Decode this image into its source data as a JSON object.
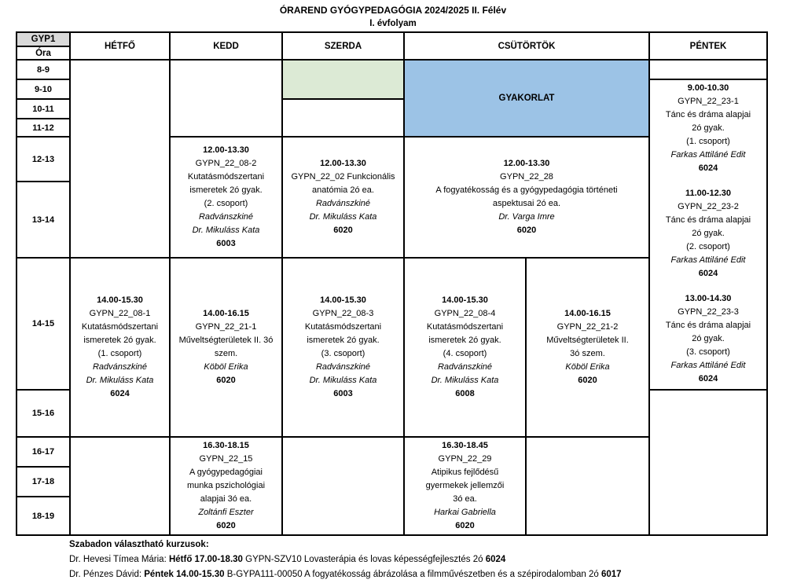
{
  "title": {
    "line1": "ÓRAREND GYÓGYPEDAGÓGIA 2024/2025 II. Félév",
    "line2": "I. évfolyam"
  },
  "header": {
    "group": "GYP1",
    "hour": "Óra",
    "monday": "HÉTFŐ",
    "tuesday": "KEDD",
    "wednesday": "SZERDA",
    "thursday": "CSÜTÖRTÖK",
    "friday": "PÉNTEK"
  },
  "time_rows": [
    "8-9",
    "9-10",
    "10-11",
    "11-12",
    "12-13",
    "13-14",
    "14-15",
    "15-16",
    "16-17",
    "17-18",
    "18-19"
  ],
  "colors": {
    "practice_blue": "#9cc3e6",
    "free_slot_green": "#dcead5",
    "header_gray": "#d9d9d9"
  },
  "gyakorlat": {
    "label": "GYAKORLAT"
  },
  "courses": {
    "tuesday_1200": {
      "lines": [
        {
          "t": "12.00-13.30",
          "s": "b"
        },
        {
          "t": "GYPN_22_08-2",
          "s": "n"
        },
        {
          "t": "Kutatásmódszertani",
          "s": "n"
        },
        {
          "t": "ismeretek 2ó gyak.",
          "s": "n"
        },
        {
          "t": "(2. csoport)",
          "s": "n"
        },
        {
          "t": "Radvánszkiné",
          "s": "i"
        },
        {
          "t": "Dr. Mikuláss Kata",
          "s": "i"
        },
        {
          "t": "6003",
          "s": "b"
        }
      ]
    },
    "wednesday_1200": {
      "lines": [
        {
          "t": "12.00-13.30",
          "s": "b"
        },
        {
          "t": "GYPN_22_02 Funkcionális",
          "s": "n"
        },
        {
          "t": "anatómia 2ó ea.",
          "s": "n"
        },
        {
          "t": "Radvánszkiné",
          "s": "i"
        },
        {
          "t": "Dr. Mikuláss Kata",
          "s": "i"
        },
        {
          "t": "6020",
          "s": "b"
        }
      ]
    },
    "thursday_1200": {
      "lines": [
        {
          "t": "12.00-13.30",
          "s": "b"
        },
        {
          "t": "GYPN_22_28",
          "s": "n"
        },
        {
          "t": "A fogyatékosság és a gyógypedagógia történeti",
          "s": "n"
        },
        {
          "t": "aspektusai 2ó ea.",
          "s": "n"
        },
        {
          "t": "Dr. Varga Imre",
          "s": "i"
        },
        {
          "t": "6020",
          "s": "b"
        }
      ]
    },
    "monday_1400": {
      "lines": [
        {
          "t": "14.00-15.30",
          "s": "b"
        },
        {
          "t": "GYPN_22_08-1",
          "s": "n"
        },
        {
          "t": "Kutatásmódszertani",
          "s": "n"
        },
        {
          "t": "ismeretek 2ó gyak.",
          "s": "n"
        },
        {
          "t": "(1. csoport)",
          "s": "n"
        },
        {
          "t": "Radvánszkiné",
          "s": "i"
        },
        {
          "t": "Dr. Mikuláss Kata",
          "s": "i"
        },
        {
          "t": "6024",
          "s": "b"
        }
      ]
    },
    "tuesday_1400": {
      "lines": [
        {
          "t": "14.00-16.15",
          "s": "b"
        },
        {
          "t": "GYPN_22_21-1",
          "s": "n"
        },
        {
          "t": "Műveltségterületek II. 3ó",
          "s": "n"
        },
        {
          "t": "szem.",
          "s": "n"
        },
        {
          "t": "Köböl Erika",
          "s": "i"
        },
        {
          "t": "6020",
          "s": "b"
        }
      ]
    },
    "wednesday_1400": {
      "lines": [
        {
          "t": "14.00-15.30",
          "s": "b"
        },
        {
          "t": "GYPN_22_08-3",
          "s": "n"
        },
        {
          "t": "Kutatásmódszertani",
          "s": "n"
        },
        {
          "t": "ismeretek 2ó gyak.",
          "s": "n"
        },
        {
          "t": "(3. csoport)",
          "s": "n"
        },
        {
          "t": "Radvánszkiné",
          "s": "i"
        },
        {
          "t": "Dr. Mikuláss Kata",
          "s": "i"
        },
        {
          "t": "6003",
          "s": "b"
        }
      ]
    },
    "thursday_1400_a": {
      "lines": [
        {
          "t": "14.00-15.30",
          "s": "b"
        },
        {
          "t": "GYPN_22_08-4",
          "s": "n"
        },
        {
          "t": "Kutatásmódszertani",
          "s": "n"
        },
        {
          "t": "ismeretek 2ó gyak.",
          "s": "n"
        },
        {
          "t": "(4. csoport)",
          "s": "n"
        },
        {
          "t": "Radvánszkiné",
          "s": "i"
        },
        {
          "t": "Dr. Mikuláss Kata",
          "s": "i"
        },
        {
          "t": "6008",
          "s": "b"
        }
      ]
    },
    "thursday_1400_b": {
      "lines": [
        {
          "t": "14.00-16.15",
          "s": "b"
        },
        {
          "t": "GYPN_22_21-2",
          "s": "n"
        },
        {
          "t": "Műveltségterületek II.",
          "s": "n"
        },
        {
          "t": "3ó szem.",
          "s": "n"
        },
        {
          "t": "Köböl Erika",
          "s": "i"
        },
        {
          "t": "6020",
          "s": "b"
        }
      ]
    },
    "tuesday_1630": {
      "lines": [
        {
          "t": "16.30-18.15",
          "s": "b"
        },
        {
          "t": "GYPN_22_15",
          "s": "n"
        },
        {
          "t": "A gyógypedagógiai",
          "s": "n"
        },
        {
          "t": "munka pszichológiai",
          "s": "n"
        },
        {
          "t": "alapjai 3ó ea.",
          "s": "n"
        },
        {
          "t": "Zoltánfi Eszter",
          "s": "i"
        },
        {
          "t": "6020",
          "s": "b"
        }
      ]
    },
    "thursday_1630": {
      "lines": [
        {
          "t": "16.30-18.45",
          "s": "b"
        },
        {
          "t": "GYPN_22_29",
          "s": "n"
        },
        {
          "t": "Atipikus fejlődésű",
          "s": "n"
        },
        {
          "t": "gyermekek jellemzői",
          "s": "n"
        },
        {
          "t": "3ó ea.",
          "s": "n"
        },
        {
          "t": "Harkai Gabriella",
          "s": "i"
        },
        {
          "t": "6020",
          "s": "b"
        }
      ]
    },
    "friday_0900": {
      "lines": [
        {
          "t": "9.00-10.30",
          "s": "b"
        },
        {
          "t": "GYPN_22_23-1",
          "s": "n"
        },
        {
          "t": "Tánc és dráma alapjai",
          "s": "n"
        },
        {
          "t": "2ó gyak.",
          "s": "n"
        },
        {
          "t": "(1. csoport)",
          "s": "n"
        },
        {
          "t": "Farkas Attiláné Edit",
          "s": "i"
        },
        {
          "t": "6024",
          "s": "b"
        }
      ]
    },
    "friday_1100": {
      "lines": [
        {
          "t": "11.00-12.30",
          "s": "b"
        },
        {
          "t": "GYPN_22_23-2",
          "s": "n"
        },
        {
          "t": "Tánc és dráma alapjai",
          "s": "n"
        },
        {
          "t": "2ó gyak.",
          "s": "n"
        },
        {
          "t": "(2. csoport)",
          "s": "n"
        },
        {
          "t": "Farkas Attiláné Edit",
          "s": "i"
        },
        {
          "t": "6024",
          "s": "b"
        }
      ]
    },
    "friday_1300": {
      "lines": [
        {
          "t": "13.00-14.30",
          "s": "b"
        },
        {
          "t": "GYPN_22_23-3",
          "s": "n"
        },
        {
          "t": "Tánc és dráma alapjai",
          "s": "n"
        },
        {
          "t": "2ó gyak.",
          "s": "n"
        },
        {
          "t": "(3. csoport)",
          "s": "n"
        },
        {
          "t": "Farkas Attiláné Edit",
          "s": "i"
        },
        {
          "t": "6024",
          "s": "b"
        }
      ]
    }
  },
  "footer": {
    "heading": "Szabadon választható kurzusok:",
    "lines": [
      {
        "segments": [
          {
            "t": "Dr. Hevesi Tímea Mária: ",
            "s": "n"
          },
          {
            "t": "Hétfő 17.00-18.30",
            "s": "b"
          },
          {
            "t": " GYPN-SZV10 Lovasterápia és lovas képességfejlesztés 2ó ",
            "s": "n"
          },
          {
            "t": "6024",
            "s": "b"
          }
        ]
      },
      {
        "segments": [
          {
            "t": "Dr. Pénzes Dávid: ",
            "s": "n"
          },
          {
            "t": "Péntek 14.00-15.30",
            "s": "b"
          },
          {
            "t": " B-GYPA111-00050 A fogyatékosság ábrázolása a filmművészetben és a szépirodalomban 2ó ",
            "s": "n"
          },
          {
            "t": "6017",
            "s": "b"
          }
        ]
      }
    ]
  }
}
